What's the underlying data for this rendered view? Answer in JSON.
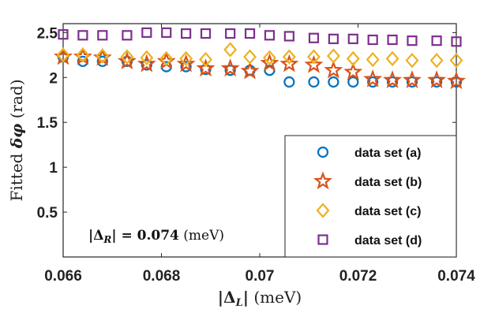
{
  "chart_data": {
    "type": "scatter",
    "xlabel": "|Δ_L| (meV)",
    "ylabel": "Fitted δφ (rad)",
    "xlim": [
      0.066,
      0.074
    ],
    "ylim": [
      0,
      2.6
    ],
    "xticks": [
      "0.066",
      "0.068",
      "0.07",
      "0.072",
      "0.074"
    ],
    "yticks": [
      "0.5",
      "1",
      "1.5",
      "2",
      "2.5"
    ],
    "grid": false,
    "legend_position": "bottom-right",
    "annotation": "|Δ_R| = 0.074 (meV)",
    "x": [
      0.066,
      0.0664,
      0.0668,
      0.0673,
      0.0677,
      0.0681,
      0.0685,
      0.0689,
      0.0694,
      0.0698,
      0.0702,
      0.0706,
      0.0711,
      0.0715,
      0.0719,
      0.0723,
      0.0727,
      0.0731,
      0.0736,
      0.074
    ],
    "series": [
      {
        "name": "data set (a)",
        "marker": "circle",
        "color": "#0072BD",
        "values": [
          2.23,
          2.18,
          2.18,
          2.18,
          2.14,
          2.12,
          2.12,
          2.09,
          2.08,
          2.08,
          2.08,
          1.95,
          1.95,
          1.95,
          1.95,
          1.95,
          1.95,
          1.95,
          1.95,
          1.95
        ]
      },
      {
        "name": "data set (b)",
        "marker": "star",
        "color": "#D95319",
        "values": [
          2.23,
          2.23,
          2.22,
          2.18,
          2.15,
          2.18,
          2.15,
          2.1,
          2.1,
          2.07,
          2.16,
          2.15,
          2.14,
          2.08,
          2.06,
          1.98,
          1.97,
          1.97,
          1.97,
          1.96
        ]
      },
      {
        "name": "data set (c)",
        "marker": "diamond",
        "color": "#EDB120",
        "values": [
          2.25,
          2.25,
          2.24,
          2.23,
          2.22,
          2.21,
          2.21,
          2.2,
          2.31,
          2.23,
          2.22,
          2.23,
          2.23,
          2.24,
          2.21,
          2.2,
          2.21,
          2.19,
          2.19,
          2.19
        ]
      },
      {
        "name": "data set (d)",
        "marker": "square",
        "color": "#7E2F8E",
        "values": [
          2.48,
          2.47,
          2.47,
          2.47,
          2.5,
          2.5,
          2.49,
          2.49,
          2.49,
          2.49,
          2.47,
          2.46,
          2.44,
          2.43,
          2.43,
          2.42,
          2.42,
          2.41,
          2.41,
          2.4
        ]
      }
    ]
  }
}
